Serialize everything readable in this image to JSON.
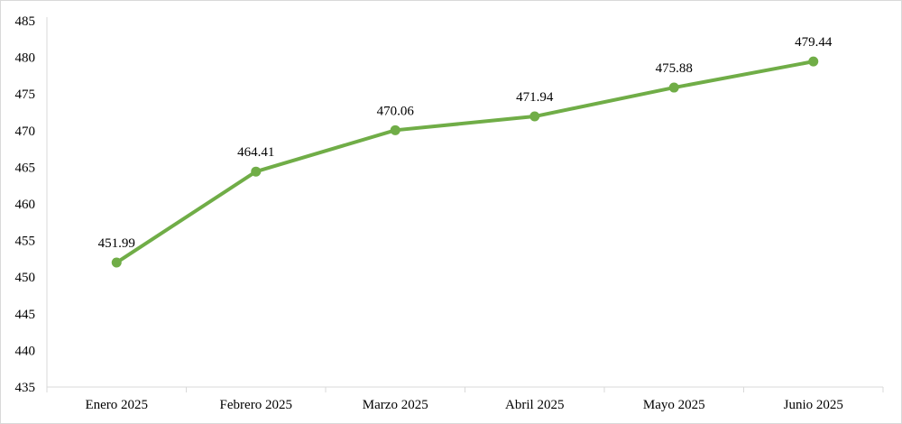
{
  "chart_data": {
    "type": "line",
    "title": "",
    "xlabel": "",
    "ylabel": "",
    "categories": [
      "Enero 2025",
      "Febrero 2025",
      "Marzo 2025",
      "Abril 2025",
      "Mayo 2025",
      "Junio 2025"
    ],
    "series": [
      {
        "values": [
          451.99,
          464.41,
          470.06,
          471.94,
          475.88,
          479.44
        ],
        "data_labels": [
          "451.99",
          "464.41",
          "470.06",
          "471.94",
          "475.88",
          "479.44"
        ],
        "color": "#70ad47"
      }
    ],
    "ylim": [
      435,
      485
    ],
    "yticks": [
      435,
      440,
      445,
      450,
      455,
      460,
      465,
      470,
      475,
      480,
      485
    ],
    "ytick_labels": [
      "435",
      "440",
      "445",
      "450",
      "455",
      "460",
      "465",
      "470",
      "475",
      "480",
      "485"
    ],
    "grid": false,
    "legend": "none",
    "axis_color": "#d9d9d9"
  }
}
